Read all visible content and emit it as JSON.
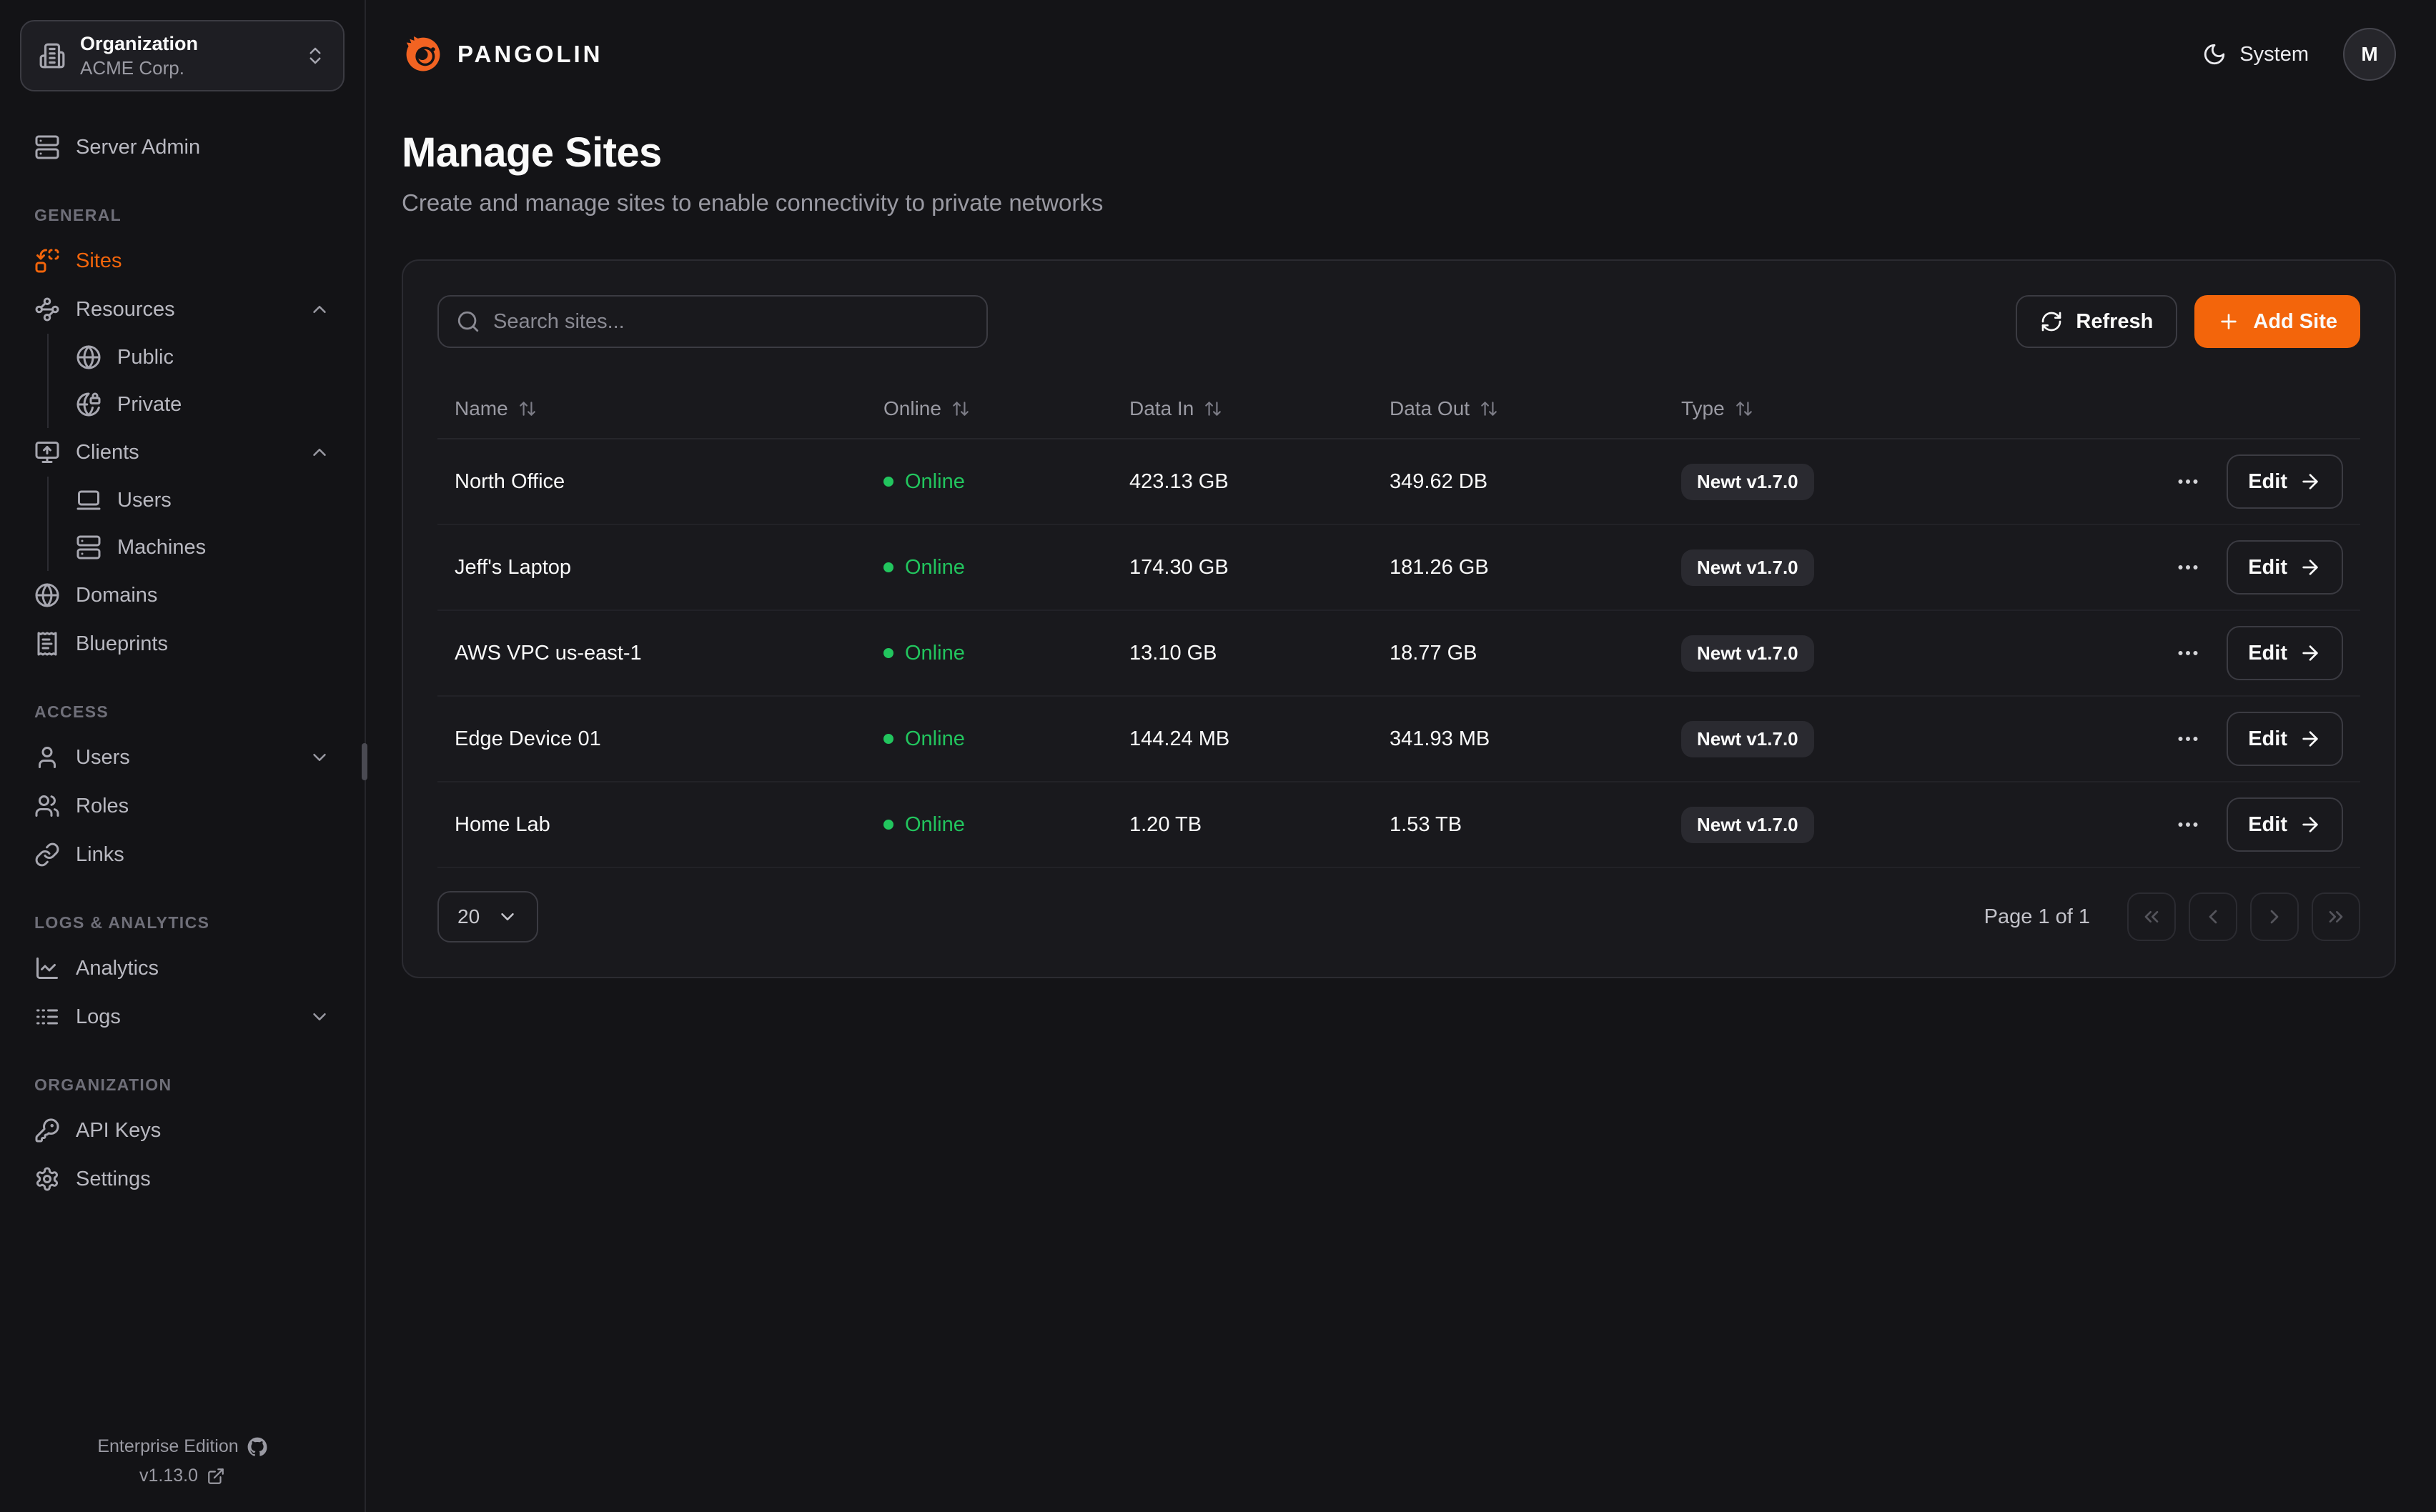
{
  "colors": {
    "accent": "#f3650b",
    "logo_orange": "#f26322",
    "online_green": "#22c55e"
  },
  "org_switcher": {
    "label": "Organization",
    "name": "ACME Corp."
  },
  "topbar": {
    "brand": "PANGOLIN",
    "theme_label": "System",
    "avatar_initial": "M"
  },
  "page": {
    "title": "Manage Sites",
    "subtitle": "Create and manage sites to enable connectivity to private networks"
  },
  "sidebar": {
    "server_admin": {
      "label": "Server Admin",
      "icon": "server-icon"
    },
    "groups": [
      {
        "title": "GENERAL",
        "items": [
          {
            "label": "Sites",
            "icon": "sites-icon",
            "active": true
          },
          {
            "label": "Resources",
            "icon": "waypoints-icon",
            "chevron": "up",
            "children": [
              {
                "label": "Public",
                "icon": "globe-icon"
              },
              {
                "label": "Private",
                "icon": "globe-lock-icon"
              }
            ]
          },
          {
            "label": "Clients",
            "icon": "monitor-up-icon",
            "chevron": "up",
            "children": [
              {
                "label": "Users",
                "icon": "laptop-icon"
              },
              {
                "label": "Machines",
                "icon": "server-icon"
              }
            ]
          },
          {
            "label": "Domains",
            "icon": "globe-icon"
          },
          {
            "label": "Blueprints",
            "icon": "receipt-icon"
          }
        ]
      },
      {
        "title": "ACCESS",
        "items": [
          {
            "label": "Users",
            "icon": "user-icon",
            "chevron": "down"
          },
          {
            "label": "Roles",
            "icon": "users-icon"
          },
          {
            "label": "Links",
            "icon": "link-icon"
          }
        ]
      },
      {
        "title": "LOGS & ANALYTICS",
        "items": [
          {
            "label": "Analytics",
            "icon": "chart-line-icon"
          },
          {
            "label": "Logs",
            "icon": "logs-icon",
            "chevron": "down"
          }
        ]
      },
      {
        "title": "ORGANIZATION",
        "items": [
          {
            "label": "API Keys",
            "icon": "key-icon"
          },
          {
            "label": "Settings",
            "icon": "gear-icon"
          }
        ]
      }
    ],
    "footer": {
      "edition": "Enterprise Edition",
      "version": "v1.13.0"
    }
  },
  "toolbar": {
    "search_placeholder": "Search sites...",
    "refresh_label": "Refresh",
    "add_site_label": "Add Site"
  },
  "table": {
    "columns": [
      "Name",
      "Online",
      "Data In",
      "Data Out",
      "Type"
    ],
    "rows": [
      {
        "name": "North Office",
        "status": "Online",
        "data_in": "423.13 GB",
        "data_out": "349.62 DB",
        "type": "Newt v1.7.0",
        "action": "Edit"
      },
      {
        "name": "Jeff's Laptop",
        "status": "Online",
        "data_in": "174.30 GB",
        "data_out": "181.26 GB",
        "type": "Newt v1.7.0",
        "action": "Edit"
      },
      {
        "name": "AWS VPC us-east-1",
        "status": "Online",
        "data_in": "13.10 GB",
        "data_out": "18.77 GB",
        "type": "Newt v1.7.0",
        "action": "Edit"
      },
      {
        "name": "Edge Device 01",
        "status": "Online",
        "data_in": "144.24 MB",
        "data_out": "341.93 MB",
        "type": "Newt v1.7.0",
        "action": "Edit"
      },
      {
        "name": "Home Lab",
        "status": "Online",
        "data_in": "1.20 TB",
        "data_out": "1.53 TB",
        "type": "Newt v1.7.0",
        "action": "Edit"
      }
    ]
  },
  "pagination": {
    "page_size": "20",
    "page_info": "Page 1 of 1"
  }
}
